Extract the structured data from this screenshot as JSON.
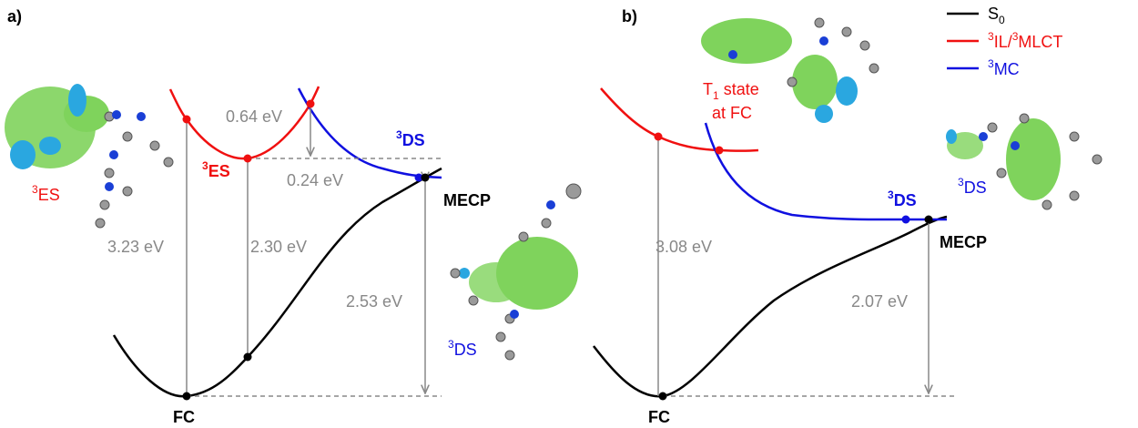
{
  "legend": {
    "s0": {
      "text": "S",
      "sub": "0"
    },
    "il_mlct": {
      "sup1": "3",
      "text1": "IL/",
      "sup2": "3",
      "text2": "MLCT"
    },
    "mc": {
      "sup": "3",
      "text": "MC"
    }
  },
  "panel_a": {
    "label": "a)",
    "es_molecule_label": {
      "sup": "3",
      "text": "ES"
    },
    "es_point": {
      "sup": "3",
      "text": "ES"
    },
    "gap_top": "0.64 eV",
    "ds_point": {
      "sup": "3",
      "text": "DS"
    },
    "gap_ds": "0.24 eV",
    "mecp": "MECP",
    "vert_fc": "3.23 eV",
    "vert_es": "2.30 eV",
    "vert_mecp": "2.53 eV",
    "ds_molecule_label": {
      "sup": "3",
      "text": "DS"
    },
    "fc": "FC"
  },
  "panel_b": {
    "label": "b)",
    "t1_label": {
      "text": "T",
      "sub": "1",
      "rest": " state",
      "line2": "at FC"
    },
    "vert_fc": "3.08 eV",
    "ds_point": {
      "sup": "3",
      "text": "DS"
    },
    "mecp": "MECP",
    "vert_mecp": "2.07 eV",
    "ds_molecule_label": {
      "sup": "3",
      "text": "DS"
    },
    "fc": "FC"
  }
}
